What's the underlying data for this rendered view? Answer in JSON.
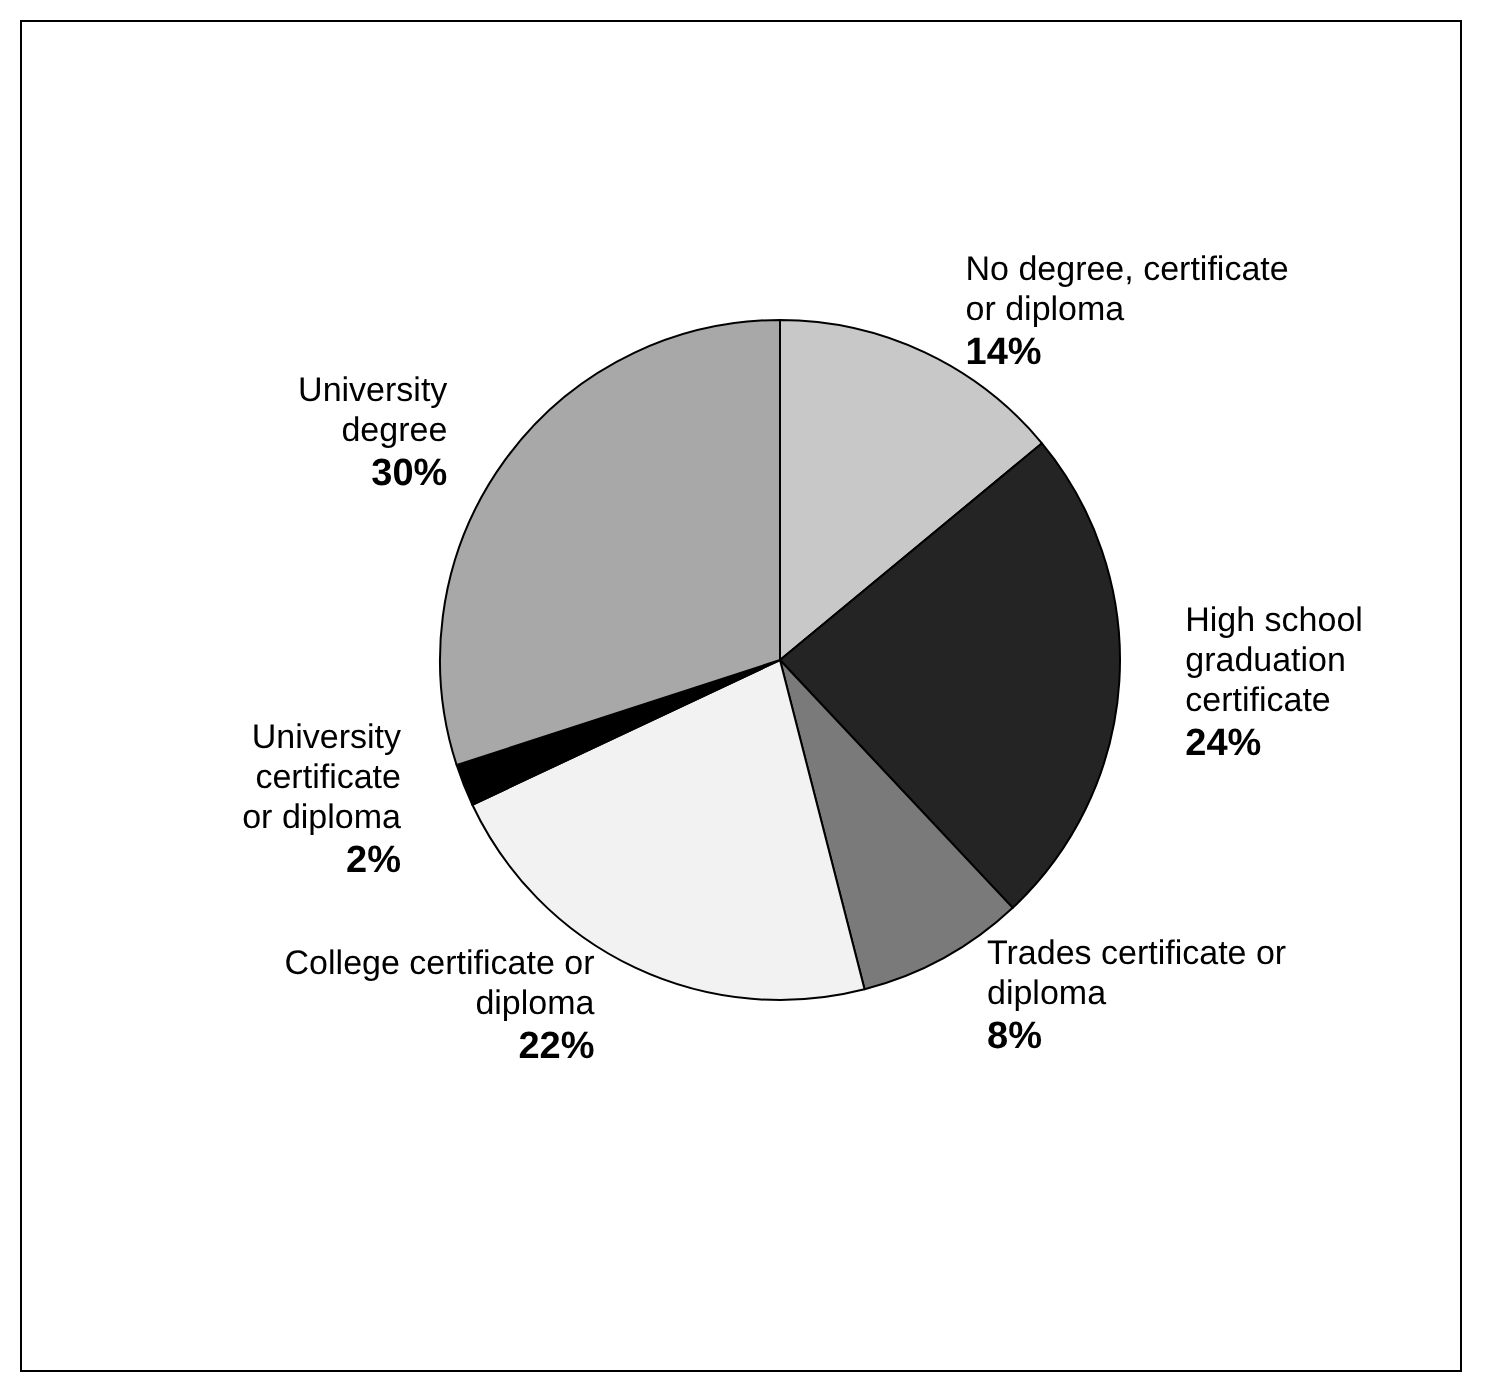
{
  "chart_data": {
    "type": "pie",
    "categories": [
      "No degree, certificate or diploma",
      "High school graduation certificate",
      "Trades certificate or diploma",
      "College certificate or diploma",
      "University certificate or diploma",
      "University degree"
    ],
    "values": [
      14,
      24,
      8,
      22,
      2,
      30
    ],
    "value_labels": [
      "14%",
      "24%",
      "8%",
      "22%",
      "2%",
      "30%"
    ],
    "colors": [
      "#c8c8c8",
      "#242424",
      "#7a7a7a",
      "#f2f2f2",
      "#000000",
      "#a8a8a8"
    ],
    "legend": false
  }
}
